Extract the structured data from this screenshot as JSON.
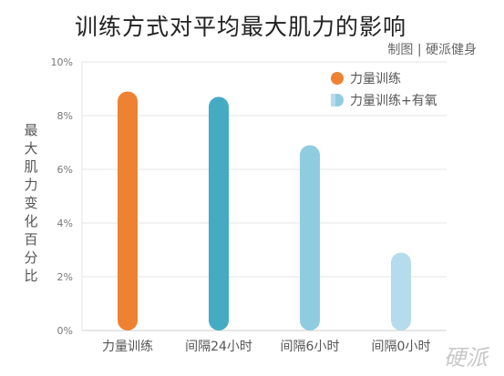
{
  "title": "训练方式对平均最大肌力的影响",
  "credit": "制图 | 硬派健身",
  "watermark": "硬派",
  "chart_data": {
    "type": "bar",
    "categories": [
      "力量训练",
      "间隔24小时",
      "间隔6小时",
      "间隔0小时"
    ],
    "values": [
      8.9,
      8.7,
      6.9,
      2.9
    ],
    "colors": [
      "#ee8233",
      "#45abc3",
      "#8fcce0",
      "#b5dcec"
    ],
    "ylabel": "最大肌力变化百分比",
    "ylim": [
      0,
      10
    ],
    "yticks": [
      "0%",
      "2%",
      "4%",
      "6%",
      "8%",
      "10%"
    ],
    "legend": [
      {
        "label": "力量训练",
        "color": "#ee8233"
      },
      {
        "label": "力量训练+有氧",
        "color": "#8fcce0"
      }
    ],
    "legend_position": "top-right",
    "grid": true
  }
}
